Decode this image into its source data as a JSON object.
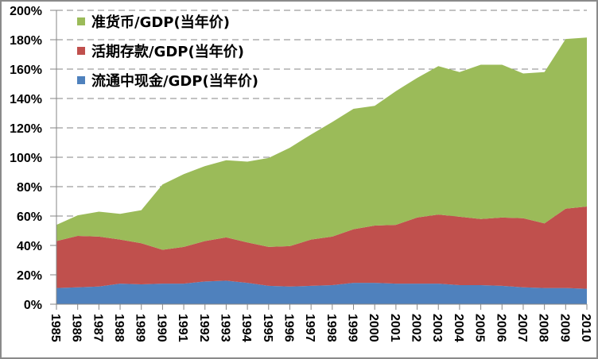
{
  "chart_data": {
    "type": "area",
    "stacked": true,
    "title": "",
    "xlabel": "",
    "ylabel": "",
    "ylim": [
      0,
      200
    ],
    "y_ticks": [
      "0%",
      "20%",
      "40%",
      "60%",
      "80%",
      "100%",
      "120%",
      "140%",
      "160%",
      "180%",
      "200%"
    ],
    "grid": "horizontal dashed",
    "legend_position": "top-left",
    "categories": [
      "1985",
      "1986",
      "1987",
      "1988",
      "1989",
      "1990",
      "1991",
      "1992",
      "1993",
      "1994",
      "1995",
      "1996",
      "1997",
      "1998",
      "1999",
      "2000",
      "2001",
      "2002",
      "2003",
      "2004",
      "2005",
      "2006",
      "2007",
      "2008",
      "2009",
      "2010"
    ],
    "series": [
      {
        "name": "流通中现金/GDP(当年价)",
        "color": "#4f81bd",
        "cumulative_top": [
          11,
          11.5,
          12,
          14,
          13.5,
          14,
          14,
          15.5,
          16,
          14.5,
          12.5,
          12,
          12.5,
          13,
          14.5,
          14.5,
          14,
          14,
          14,
          13,
          13,
          12.5,
          11.5,
          11,
          11,
          10.5
        ]
      },
      {
        "name": "活期存款/GDP(当年价)",
        "color": "#c0504d",
        "cumulative_top": [
          43,
          46.5,
          46,
          44,
          41.5,
          37,
          39,
          43,
          45.5,
          42,
          39,
          39.5,
          44,
          46,
          51,
          53.5,
          54,
          59,
          61,
          59.5,
          58,
          59,
          58.5,
          55,
          65,
          66.5
        ]
      },
      {
        "name": "准货币/GDP(当年价)",
        "color": "#9bbb59",
        "cumulative_top": [
          54,
          60.5,
          63,
          61.5,
          64,
          81.5,
          88.5,
          94,
          98,
          97,
          99.5,
          106.5,
          115.5,
          124,
          133,
          135,
          145,
          154,
          162,
          158,
          163,
          163,
          157,
          158,
          180.5,
          181.5
        ]
      }
    ],
    "legend": [
      {
        "label": "准货币/GDP(当年价)",
        "color": "#9bbb59"
      },
      {
        "label": "活期存款/GDP(当年价)",
        "color": "#c0504d"
      },
      {
        "label": "流通中现金/GDP(当年价)",
        "color": "#4f81bd"
      }
    ]
  }
}
